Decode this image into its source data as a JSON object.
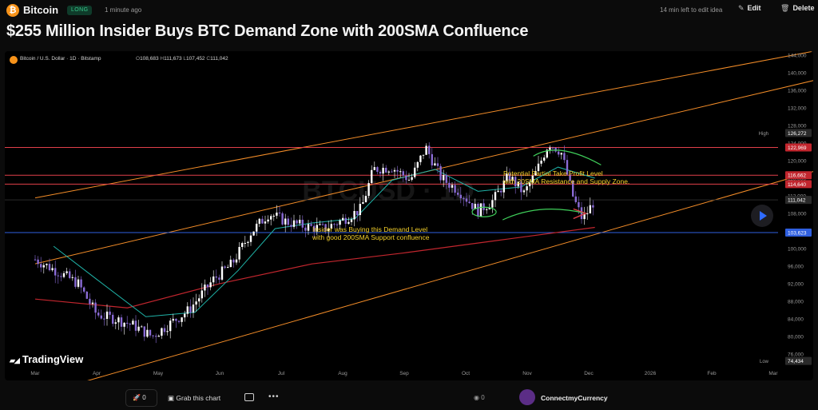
{
  "header": {
    "coin_name": "Bitcoin",
    "coin_icon_char": "₿",
    "badge": "LONG",
    "time_ago": "1 minute ago",
    "edit_time_left": "14 min left to edit idea",
    "edit_label": "Edit",
    "delete_label": "Delete",
    "icons": {
      "edit": "pencil-icon",
      "delete": "trash-icon"
    }
  },
  "title": "$255 Million Insider Buys BTC Demand Zone with 200SMA Confluence",
  "chart": {
    "symbol": "Bitcoin / U.S. Dollar · 1D · Bitstamp",
    "ohlc": {
      "o_label": "O",
      "o": "108,683",
      "h_label": "H",
      "h": "111,673",
      "l_label": "L",
      "l": "107,452",
      "c_label": "C",
      "c": "111,042"
    },
    "annotations": {
      "take_profit_1": "Potential Partial Take Profit Level",
      "take_profit_2": "with 20SMA Resistance and Supply Zone.",
      "insider_1": "Insider was Buying this Demand Level",
      "insider_2": "with good 200SMA Support confluence"
    },
    "watermark": "BTCUSD · 1D",
    "logo_text": "TradingView"
  },
  "chart_data": {
    "type": "line",
    "title": "Bitcoin / U.S. Dollar · 1D · Bitstamp",
    "x_tick_labels": [
      "Mar",
      "Apr",
      "May",
      "Jun",
      "Jul",
      "Aug",
      "Sep",
      "Oct",
      "Nov",
      "Dec",
      "2026",
      "Feb",
      "Mar"
    ],
    "y_tick_values": [
      76000,
      80000,
      84000,
      88000,
      92000,
      96000,
      100000,
      104000,
      108000,
      112000,
      116000,
      120000,
      124000,
      128000,
      132000,
      136000,
      140000,
      144000
    ],
    "ylim": [
      74000,
      144500
    ],
    "horizontal_levels": [
      {
        "label": "High",
        "value": 126272,
        "display": "126,272",
        "color": "#1e1e1e"
      },
      {
        "value": 122969,
        "display": "122,969",
        "color": "#e0404a"
      },
      {
        "value": 116662,
        "display": "116,662",
        "color": "#e0404a"
      },
      {
        "value": 114640,
        "display": "114,640",
        "color": "#e0404a"
      },
      {
        "value": 111042,
        "display": "111,042",
        "color": "#2a2a2a"
      },
      {
        "value": 103623,
        "display": "103,623",
        "color": "#2f5fe0"
      },
      {
        "label": "Low",
        "value": 74434,
        "display": "74,434",
        "color": "#1e1e1e"
      }
    ],
    "close_series": [
      {
        "t": 0.0,
        "v": 97500
      },
      {
        "t": 0.4,
        "v": 94500
      },
      {
        "t": 0.7,
        "v": 92000
      },
      {
        "t": 1.0,
        "v": 85000
      },
      {
        "t": 1.3,
        "v": 84000
      },
      {
        "t": 1.6,
        "v": 82500
      },
      {
        "t": 1.9,
        "v": 80000
      },
      {
        "t": 2.2,
        "v": 83000
      },
      {
        "t": 2.5,
        "v": 86000
      },
      {
        "t": 2.9,
        "v": 93000
      },
      {
        "t": 3.2,
        "v": 96500
      },
      {
        "t": 3.5,
        "v": 103500
      },
      {
        "t": 3.8,
        "v": 108000
      },
      {
        "t": 4.1,
        "v": 106000
      },
      {
        "t": 4.4,
        "v": 105000
      },
      {
        "t": 4.7,
        "v": 104500
      },
      {
        "t": 5.0,
        "v": 106500
      },
      {
        "t": 5.3,
        "v": 109000
      },
      {
        "t": 5.5,
        "v": 118000
      },
      {
        "t": 5.8,
        "v": 118500
      },
      {
        "t": 6.1,
        "v": 115500
      },
      {
        "t": 6.35,
        "v": 123000
      },
      {
        "t": 6.6,
        "v": 116000
      },
      {
        "t": 6.9,
        "v": 113000
      },
      {
        "t": 7.2,
        "v": 108500
      },
      {
        "t": 7.45,
        "v": 111000
      },
      {
        "t": 7.7,
        "v": 116500
      },
      {
        "t": 7.95,
        "v": 112500
      },
      {
        "t": 8.15,
        "v": 117500
      },
      {
        "t": 8.35,
        "v": 124000
      },
      {
        "t": 8.55,
        "v": 122000
      },
      {
        "t": 8.75,
        "v": 111500
      },
      {
        "t": 8.9,
        "v": 106500
      },
      {
        "t": 9.1,
        "v": 111042
      }
    ],
    "sma20": [
      {
        "t": 0.3,
        "v": 100500
      },
      {
        "t": 1.0,
        "v": 93000
      },
      {
        "t": 1.8,
        "v": 84500
      },
      {
        "t": 2.6,
        "v": 85500
      },
      {
        "t": 3.3,
        "v": 95000
      },
      {
        "t": 3.9,
        "v": 104500
      },
      {
        "t": 4.5,
        "v": 105800
      },
      {
        "t": 5.2,
        "v": 106800
      },
      {
        "t": 5.8,
        "v": 115500
      },
      {
        "t": 6.5,
        "v": 118000
      },
      {
        "t": 7.2,
        "v": 113000
      },
      {
        "t": 7.9,
        "v": 114000
      },
      {
        "t": 8.5,
        "v": 118500
      },
      {
        "t": 9.1,
        "v": 116000
      }
    ],
    "sma200": [
      {
        "t": 0.0,
        "v": 88500
      },
      {
        "t": 1.5,
        "v": 86500
      },
      {
        "t": 3.0,
        "v": 92000
      },
      {
        "t": 4.5,
        "v": 96500
      },
      {
        "t": 6.0,
        "v": 99000
      },
      {
        "t": 7.5,
        "v": 101800
      },
      {
        "t": 9.1,
        "v": 104800
      }
    ],
    "channel_lines": [
      {
        "from": {
          "t": 0.0,
          "v": 111500
        },
        "to": {
          "t": 12.9,
          "v": 145500
        }
      },
      {
        "from": {
          "t": 0.0,
          "v": 96500
        },
        "to": {
          "t": 12.9,
          "v": 139000
        }
      },
      {
        "from": {
          "t": 0.0,
          "v": 66500
        },
        "to": {
          "t": 12.9,
          "v": 118500
        }
      }
    ],
    "grid": false,
    "colors": {
      "up": "#ffffff",
      "down": "#8a6bd6",
      "sma20": "#1fb3a8",
      "sma200": "#c2262e",
      "channel": "#f28c28"
    }
  },
  "footer": {
    "boost_count": "0",
    "boost_icon": "rocket-icon",
    "grab_label": "Grab this chart",
    "grab_icon": "image-icon",
    "comment_icon": "comment-icon",
    "more_icon": "more-icon",
    "views_count": "0",
    "views_icon": "eye-icon",
    "author": "ConnectmyCurrency"
  }
}
